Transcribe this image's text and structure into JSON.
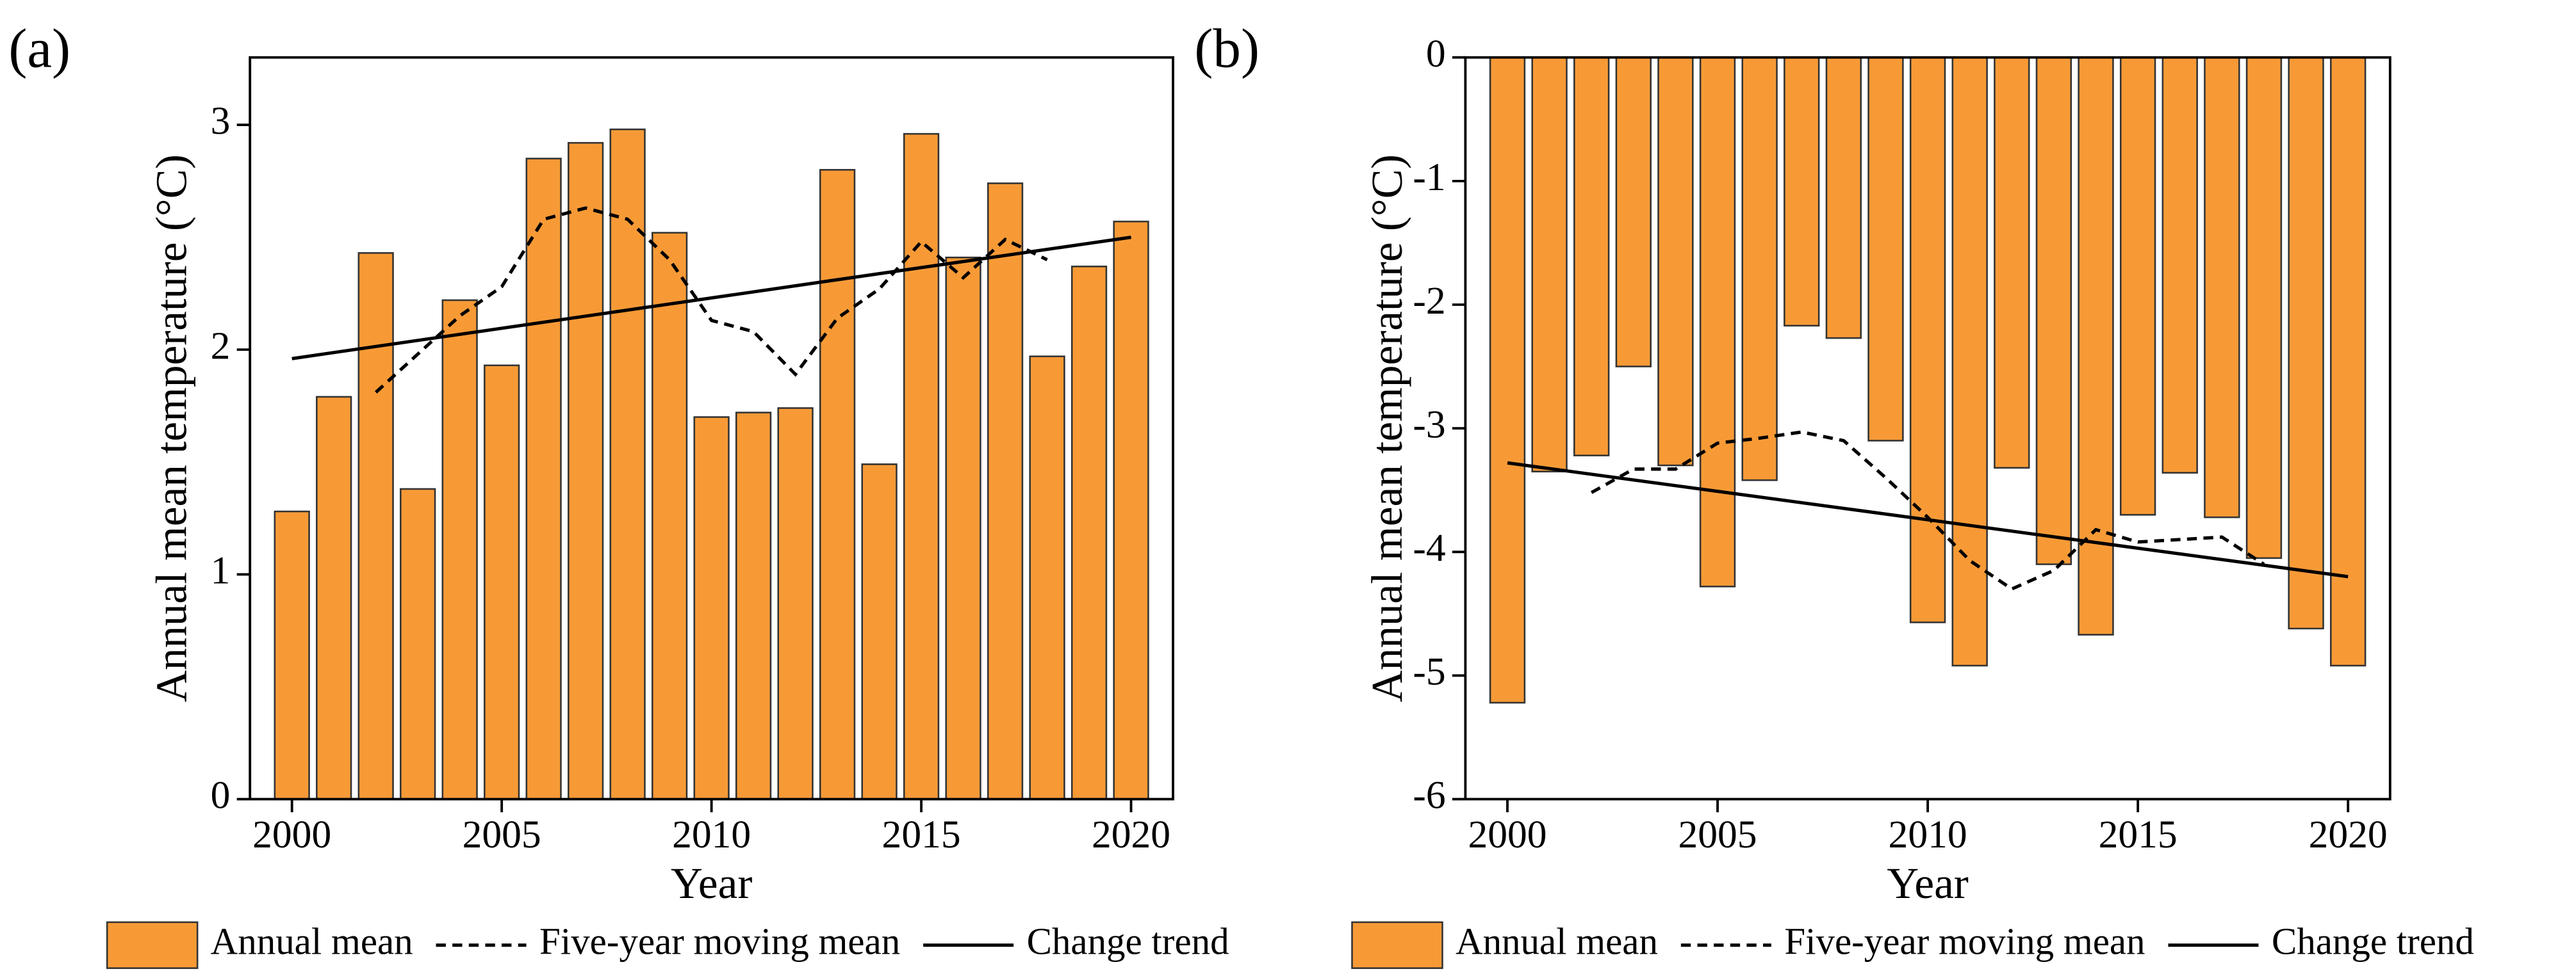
{
  "chart_data": [
    {
      "type": "bar",
      "panel": "(a)",
      "x_label": "Year",
      "y_label": "Annual mean temperature (°C)",
      "x": [
        2000,
        2001,
        2002,
        2003,
        2004,
        2005,
        2006,
        2007,
        2008,
        2009,
        2010,
        2011,
        2012,
        2013,
        2014,
        2015,
        2016,
        2017,
        2018,
        2019,
        2020
      ],
      "series": [
        {
          "name": "Annual mean",
          "kind": "bar",
          "color": "#f79a36",
          "values": [
            1.28,
            1.79,
            2.43,
            1.38,
            2.22,
            1.93,
            2.85,
            2.92,
            2.98,
            2.52,
            1.7,
            1.72,
            1.74,
            2.8,
            1.49,
            2.96,
            2.41,
            2.74,
            1.97,
            2.37,
            2.57
          ]
        },
        {
          "name": "Five-year moving mean",
          "kind": "line",
          "dashed": true,
          "color": "#000000",
          "values": [
            null,
            null,
            1.81,
            1.98,
            2.15,
            2.28,
            2.58,
            2.63,
            2.58,
            2.4,
            2.13,
            2.08,
            1.89,
            2.14,
            2.27,
            2.48,
            2.32,
            2.49,
            2.4,
            null,
            null
          ]
        },
        {
          "name": "Change trend",
          "kind": "line",
          "dashed": false,
          "color": "#000000",
          "x": [
            2000,
            2020
          ],
          "values": [
            1.96,
            2.5
          ]
        }
      ],
      "xlim": [
        1999,
        2021
      ],
      "xticks": [
        2000,
        2005,
        2010,
        2015,
        2020
      ],
      "ylim": [
        0,
        3.3
      ],
      "yticks": [
        0,
        1,
        2,
        3
      ],
      "legend": "bottom"
    },
    {
      "type": "bar",
      "panel": "(b)",
      "x_label": "Year",
      "y_label": "Annual mean temperature (°C)",
      "x": [
        2000,
        2001,
        2002,
        2003,
        2004,
        2005,
        2006,
        2007,
        2008,
        2009,
        2010,
        2011,
        2012,
        2013,
        2014,
        2015,
        2016,
        2017,
        2018,
        2019,
        2020
      ],
      "series": [
        {
          "name": "Annual mean",
          "kind": "bar",
          "color": "#f79a36",
          "values": [
            -5.22,
            -3.35,
            -3.22,
            -2.5,
            -3.3,
            -4.28,
            -3.42,
            -2.17,
            -2.27,
            -3.1,
            -4.57,
            -4.92,
            -3.32,
            -4.1,
            -4.67,
            -3.7,
            -3.36,
            -3.72,
            -4.05,
            -4.62,
            -4.92
          ]
        },
        {
          "name": "Five-year moving mean",
          "kind": "line",
          "dashed": true,
          "color": "#000000",
          "values": [
            null,
            null,
            -3.52,
            -3.33,
            -3.33,
            -3.12,
            -3.08,
            -3.03,
            -3.1,
            -3.4,
            -3.72,
            -4.07,
            -4.3,
            -4.15,
            -3.82,
            -3.92,
            -3.9,
            -3.88,
            -4.1,
            null,
            null
          ]
        },
        {
          "name": "Change trend",
          "kind": "line",
          "dashed": false,
          "color": "#000000",
          "x": [
            2000,
            2020
          ],
          "values": [
            -3.28,
            -4.2
          ]
        }
      ],
      "xlim": [
        1999,
        2021
      ],
      "xticks": [
        2000,
        2005,
        2010,
        2015,
        2020
      ],
      "ylim": [
        -6,
        0
      ],
      "yticks": [
        -6,
        -5,
        -4,
        -3,
        -2,
        -1,
        0
      ],
      "legend": "bottom"
    }
  ]
}
